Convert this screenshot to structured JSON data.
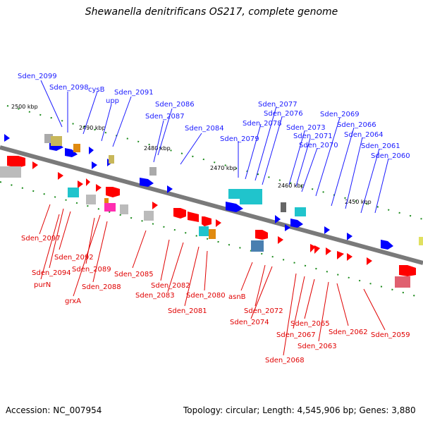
{
  "title": "Shewanella denitrificans OS217, complete genome",
  "footer": {
    "accession": "Accession: NC_007954",
    "summary": "Topology: circular; Length: 4,545,906 bp; Genes: 3,880"
  },
  "colors": {
    "forward_gene": "#0000ff",
    "reverse_gene": "#ff0000",
    "backbone": "#777777",
    "tick": "#118811",
    "blue_label": "#1a1aff",
    "red_label": "#e00000"
  },
  "scale_labels": [
    "2500 kbp",
    "2490 kbp",
    "2480 kbp",
    "2470 kbp",
    "2460 kbp",
    "2450 kbp"
  ],
  "blue_labels": [
    "Sden_2099",
    "Sden_2098",
    "cysB",
    "upp",
    "Sden_2091",
    "Sden_2086",
    "Sden_2087",
    "Sden_2084",
    "Sden_2077",
    "Sden_2076",
    "Sden_2078",
    "Sden_2079",
    "Sden_2073",
    "Sden_2071",
    "Sden_2070",
    "Sden_2069",
    "Sden_2066",
    "Sden_2064",
    "Sden_2061",
    "Sden_2060"
  ],
  "red_labels": [
    "Sden_2097",
    "Sden_2092",
    "Sden_2094",
    "purN",
    "Sden_2089",
    "grxA",
    "Sden_2088",
    "Sden_2085",
    "Sden_2082",
    "Sden_2083",
    "Sden_2080",
    "Sden_2081",
    "asnB",
    "Sden_2072",
    "Sden_2074",
    "Sden_2065",
    "Sden_2067",
    "Sden_2063",
    "Sden_2062",
    "Sden_2068",
    "Sden_2059"
  ]
}
